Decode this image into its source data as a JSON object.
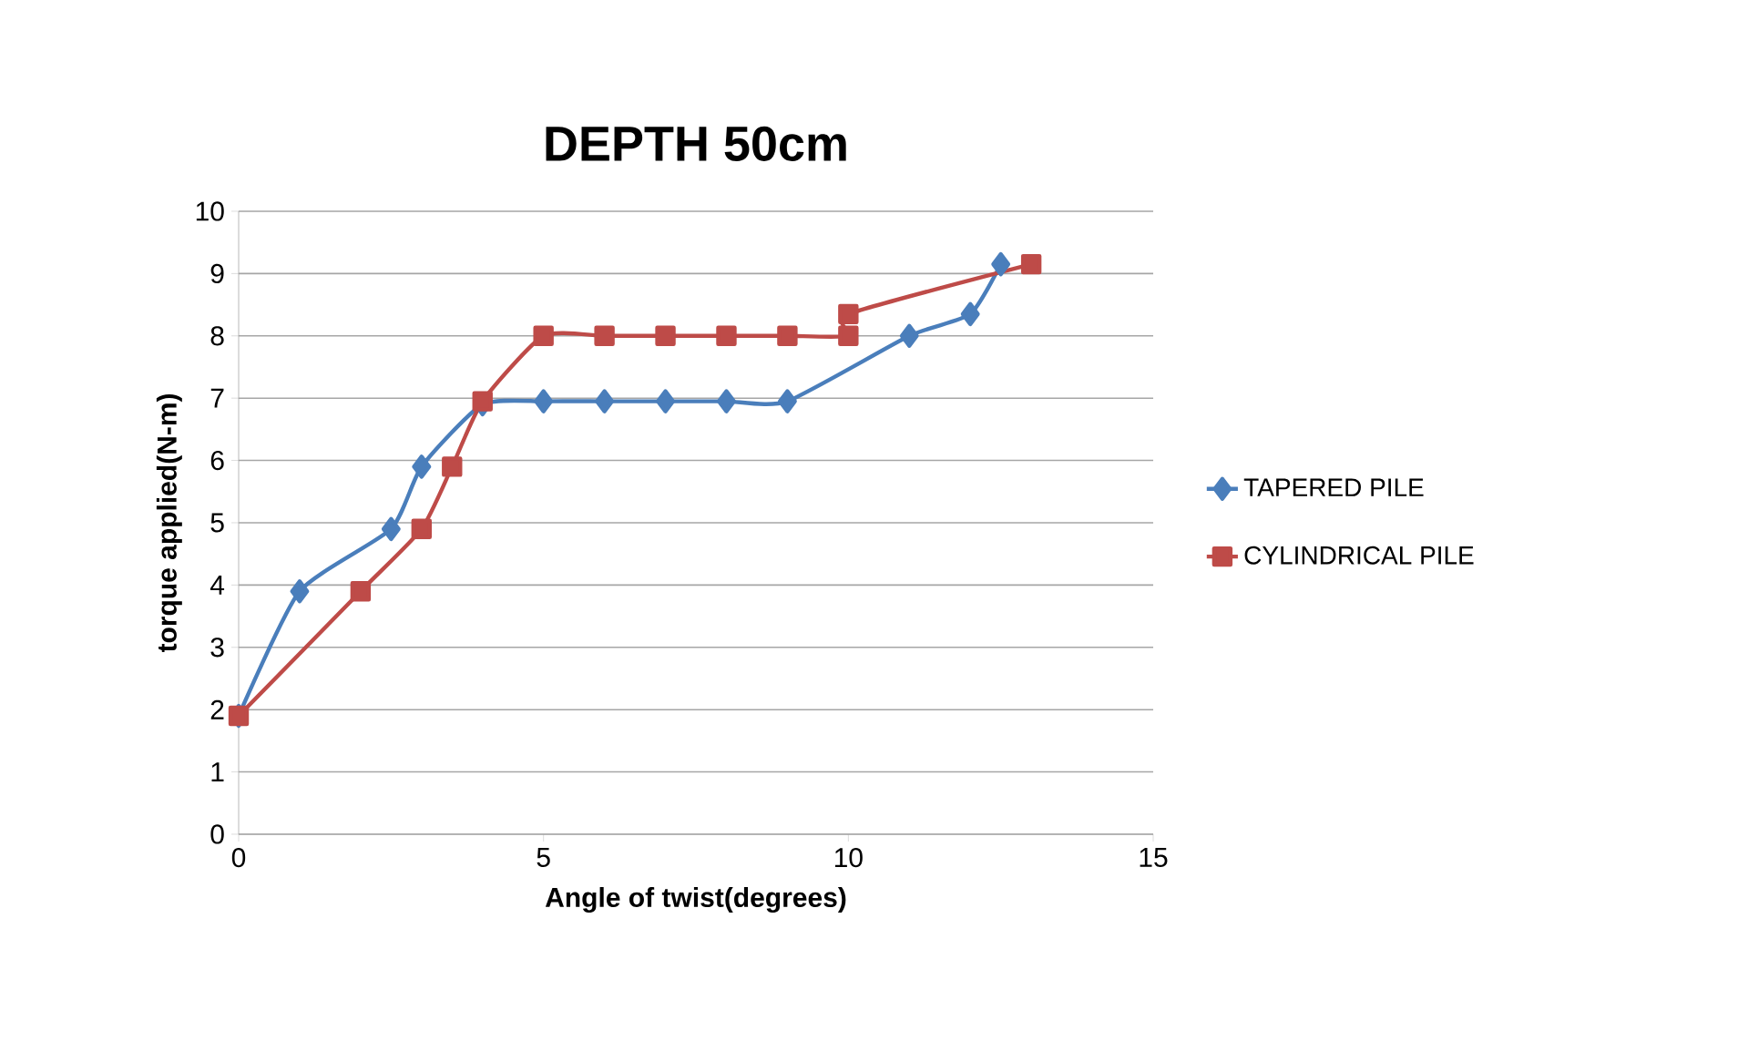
{
  "chart_data": {
    "type": "line",
    "title": "DEPTH 50cm",
    "xlabel": "Angle of twist(degrees)",
    "ylabel": "torque applied(N-m)",
    "xlim": [
      0,
      15
    ],
    "xticks": [
      0,
      5,
      10,
      15
    ],
    "ylim": [
      0,
      10
    ],
    "yticks": [
      0,
      1,
      2,
      3,
      4,
      5,
      6,
      7,
      8,
      9,
      10
    ],
    "grid": "y",
    "legend": "right",
    "series": [
      {
        "name": "TAPERED PILE",
        "color": "#4a7ebb",
        "marker": "diamond",
        "x": [
          0,
          1,
          2.5,
          3,
          4,
          5,
          6,
          7,
          8,
          9,
          11,
          12,
          12.5
        ],
        "values": [
          1.9,
          3.9,
          4.9,
          5.9,
          6.9,
          6.95,
          6.95,
          6.95,
          6.95,
          6.95,
          8,
          8.35,
          9.15
        ]
      },
      {
        "name": "CYLINDRICAL PILE",
        "color": "#be4b48",
        "marker": "square",
        "x": [
          0,
          2,
          3,
          3.5,
          4,
          5,
          6,
          7,
          8,
          9,
          10,
          10,
          13
        ],
        "values": [
          1.9,
          3.9,
          4.9,
          5.9,
          6.95,
          8,
          8,
          8,
          8,
          8,
          8,
          8.35,
          9.15
        ]
      }
    ]
  }
}
